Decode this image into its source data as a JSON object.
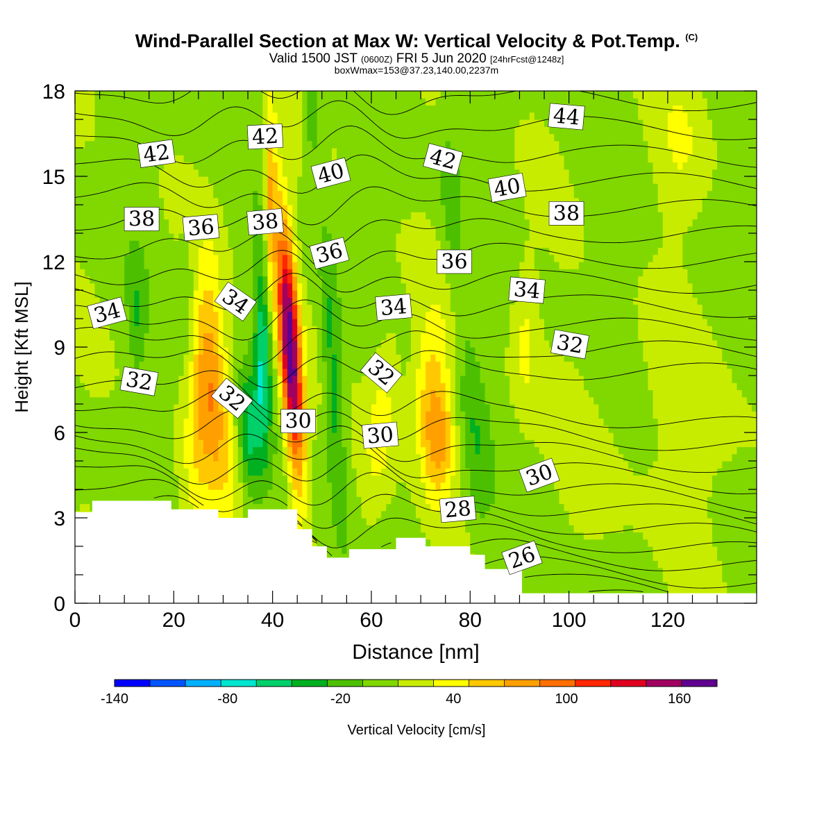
{
  "header": {
    "title": "Wind-Parallel Section at Max W: Vertical Velocity & Pot.Temp.",
    "copyright": "(C)",
    "valid_prefix": "Valid 1500 JST",
    "valid_zulu": "(0600Z)",
    "valid_date": "FRI 5 Jun 2020",
    "forecast": "[24hrFcst@1248z]",
    "box_info": "boxWmax=153@37.23,140.00,2237m"
  },
  "chart_data": {
    "type": "heatmap",
    "xlabel": "Distance [nm]",
    "ylabel": "Height [Kft MSL]",
    "xlim": [
      0,
      138
    ],
    "ylim": [
      0,
      18
    ],
    "x_ticks": [
      0,
      20,
      40,
      60,
      80,
      100,
      120
    ],
    "y_ticks": [
      0,
      3,
      6,
      9,
      12,
      15,
      18
    ],
    "colorbar": {
      "label": "Vertical Velocity [cm/s]",
      "tick_labels": [
        "-140",
        "-80",
        "-20",
        "40",
        "100",
        "160"
      ],
      "tick_values": [
        -140,
        -80,
        -20,
        40,
        100,
        160
      ],
      "min": -140,
      "max": 180,
      "colors": [
        "#0000ff",
        "#0055ff",
        "#00b0ff",
        "#00e6d0",
        "#00d06a",
        "#00b020",
        "#4cc000",
        "#80d800",
        "#c8ec00",
        "#ffff00",
        "#ffc800",
        "#ffa000",
        "#ff7000",
        "#ff2800",
        "#e00020",
        "#a00060",
        "#600090"
      ]
    },
    "terrain_profile_x": [
      0,
      3.5,
      3.5,
      19.5,
      19.5,
      29,
      29,
      35,
      35,
      45,
      45,
      48,
      48,
      51,
      51,
      55.5,
      55.5,
      65,
      65,
      71,
      71,
      80,
      80,
      83,
      83,
      90.5,
      90.5,
      138
    ],
    "terrain_profile_h": [
      3.2,
      3.2,
      3.6,
      3.6,
      3.3,
      3.3,
      3.0,
      3.0,
      3.3,
      3.3,
      2.6,
      2.6,
      2.0,
      2.0,
      1.6,
      1.6,
      1.9,
      1.9,
      2.3,
      2.3,
      2.0,
      2.0,
      1.7,
      1.7,
      1.2,
      1.2,
      0.35,
      0.35
    ],
    "theta_contour_labels": [
      {
        "text": "44",
        "x": 99.5,
        "y": 17.1,
        "rot": 5
      },
      {
        "text": "42",
        "x": 16.5,
        "y": 15.8,
        "rot": -8
      },
      {
        "text": "42",
        "x": 38.5,
        "y": 16.4,
        "rot": -3
      },
      {
        "text": "40",
        "x": 51.8,
        "y": 15.1,
        "rot": -15
      },
      {
        "text": "42",
        "x": 74.5,
        "y": 15.6,
        "rot": 15
      },
      {
        "text": "40",
        "x": 87.5,
        "y": 14.6,
        "rot": -10
      },
      {
        "text": "38",
        "x": 13.5,
        "y": 13.5,
        "rot": 0
      },
      {
        "text": "36",
        "x": 25.5,
        "y": 13.2,
        "rot": -5
      },
      {
        "text": "38",
        "x": 38.5,
        "y": 13.4,
        "rot": -5
      },
      {
        "text": "36",
        "x": 51.5,
        "y": 12.3,
        "rot": -15
      },
      {
        "text": "38",
        "x": 99.5,
        "y": 13.7,
        "rot": 0
      },
      {
        "text": "36",
        "x": 76.8,
        "y": 12.0,
        "rot": 0
      },
      {
        "text": "34",
        "x": 6.5,
        "y": 10.2,
        "rot": -15
      },
      {
        "text": "34",
        "x": 32.5,
        "y": 10.6,
        "rot": 35
      },
      {
        "text": "34",
        "x": 64.5,
        "y": 10.4,
        "rot": -5
      },
      {
        "text": "34",
        "x": 91.5,
        "y": 11.0,
        "rot": 5
      },
      {
        "text": "32",
        "x": 13.0,
        "y": 7.8,
        "rot": 10
      },
      {
        "text": "32",
        "x": 31.8,
        "y": 7.2,
        "rot": 40
      },
      {
        "text": "32",
        "x": 62.0,
        "y": 8.1,
        "rot": 40
      },
      {
        "text": "32",
        "x": 100.2,
        "y": 9.1,
        "rot": 10
      },
      {
        "text": "30",
        "x": 45.2,
        "y": 6.4,
        "rot": 0
      },
      {
        "text": "30",
        "x": 61.8,
        "y": 5.9,
        "rot": -5
      },
      {
        "text": "30",
        "x": 94.0,
        "y": 4.5,
        "rot": -20
      },
      {
        "text": "28",
        "x": 77.5,
        "y": 3.3,
        "rot": -5
      },
      {
        "text": "26",
        "x": 90.5,
        "y": 1.6,
        "rot": -20
      }
    ]
  }
}
